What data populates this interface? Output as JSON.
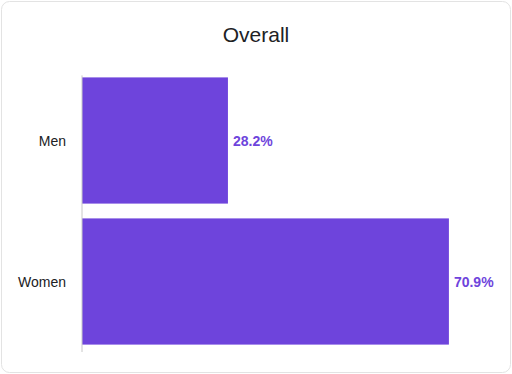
{
  "chart_data": {
    "type": "bar",
    "title": "Overall",
    "orientation": "horizontal",
    "categories": [
      "Men",
      "Women"
    ],
    "values": [
      28.2,
      70.9
    ],
    "value_labels": [
      "28.2%",
      "70.9%"
    ],
    "color": "#6e44dc",
    "xlim": [
      0,
      80
    ],
    "data_labels": true,
    "tick_labels": "y"
  }
}
